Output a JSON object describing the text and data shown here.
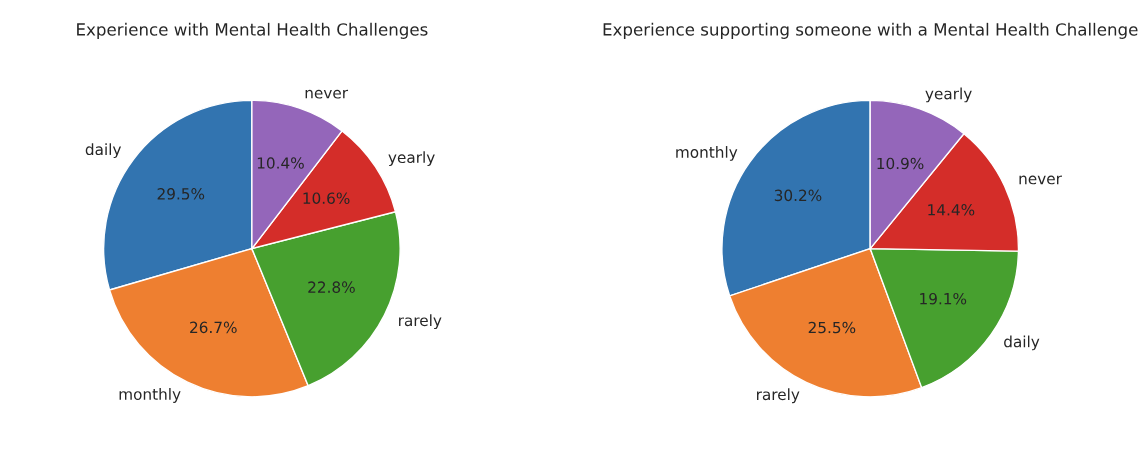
{
  "chart_data": [
    {
      "type": "pie",
      "title": "Experience with Mental Health Challenges",
      "categories": [
        "daily",
        "monthly",
        "rarely",
        "yearly",
        "never"
      ],
      "values": [
        29.5,
        26.7,
        22.8,
        10.6,
        10.4
      ],
      "value_labels": [
        "29.5%",
        "26.7%",
        "22.8%",
        "10.6%",
        "10.4%"
      ],
      "colors": [
        "#3274b0",
        "#ee7f30",
        "#47a02f",
        "#d42d29",
        "#9466ba"
      ]
    },
    {
      "type": "pie",
      "title": "Experience supporting someone with a Mental Health Challenge",
      "categories": [
        "monthly",
        "rarely",
        "daily",
        "never",
        "yearly"
      ],
      "values": [
        30.2,
        25.5,
        19.1,
        14.4,
        10.9
      ],
      "value_labels": [
        "30.2%",
        "25.5%",
        "19.1%",
        "14.4%",
        "10.9%"
      ],
      "colors": [
        "#3274b0",
        "#ee7f30",
        "#47a02f",
        "#d42d29",
        "#9466ba"
      ]
    }
  ]
}
